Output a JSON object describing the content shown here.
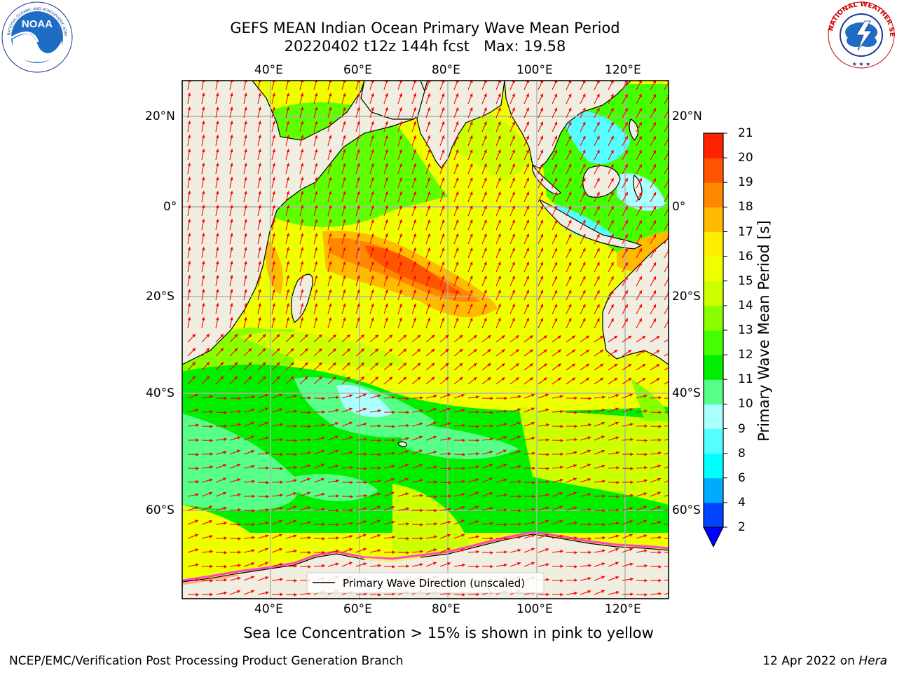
{
  "title": {
    "line1": "GEFS MEAN Indian Ocean Primary Wave Mean Period",
    "line2": "20220402 t12z 144h fcst   Max: 19.58"
  },
  "logos": {
    "left": {
      "text": "NOAA",
      "icon": "noaa-logo-icon",
      "ring_text": "NATIONAL OCEANIC AND ATMOSPHERIC ADMINISTRATION · U.S. DEPARTMENT OF COMMERCE"
    },
    "right": {
      "icon": "nws-logo-icon",
      "ring_text": "NATIONAL WEATHER SERVICE"
    }
  },
  "map": {
    "lon_ticks": [
      "40°E",
      "60°E",
      "80°E",
      "100°E",
      "120°E"
    ],
    "lat_ticks": [
      "20°N",
      "0°",
      "20°S",
      "40°S",
      "60°S"
    ],
    "legend_label": "Primary Wave Direction (unscaled)",
    "land_color": "#efeee0",
    "arrow_color": "#ff0000",
    "sea_ice_colors": [
      "#ff44cc",
      "#ffaa88",
      "#ffee66"
    ]
  },
  "colorbar": {
    "label": "Primary Wave Mean Period [s]",
    "tick_labels": [
      "2",
      "4",
      "6",
      "8",
      "9",
      "10",
      "11",
      "12",
      "13",
      "14",
      "15",
      "16",
      "17",
      "18",
      "19",
      "20",
      "21"
    ],
    "colors": [
      "#0044ff",
      "#00aaff",
      "#00ffff",
      "#55ffff",
      "#aaffff",
      "#55ff88",
      "#00ee00",
      "#44ff00",
      "#88ff00",
      "#ccff00",
      "#eeff00",
      "#ffee00",
      "#ffbb00",
      "#ff8800",
      "#ff5500",
      "#ff2200"
    ],
    "extend_color": "#0000ff"
  },
  "caption": "Sea Ice Concentration > 15% is shown in pink to yellow",
  "footer": {
    "left": "NCEP/EMC/Verification Post Processing Product Generation Branch",
    "right_date": "12 Apr 2022 on",
    "right_host": "Hera"
  }
}
